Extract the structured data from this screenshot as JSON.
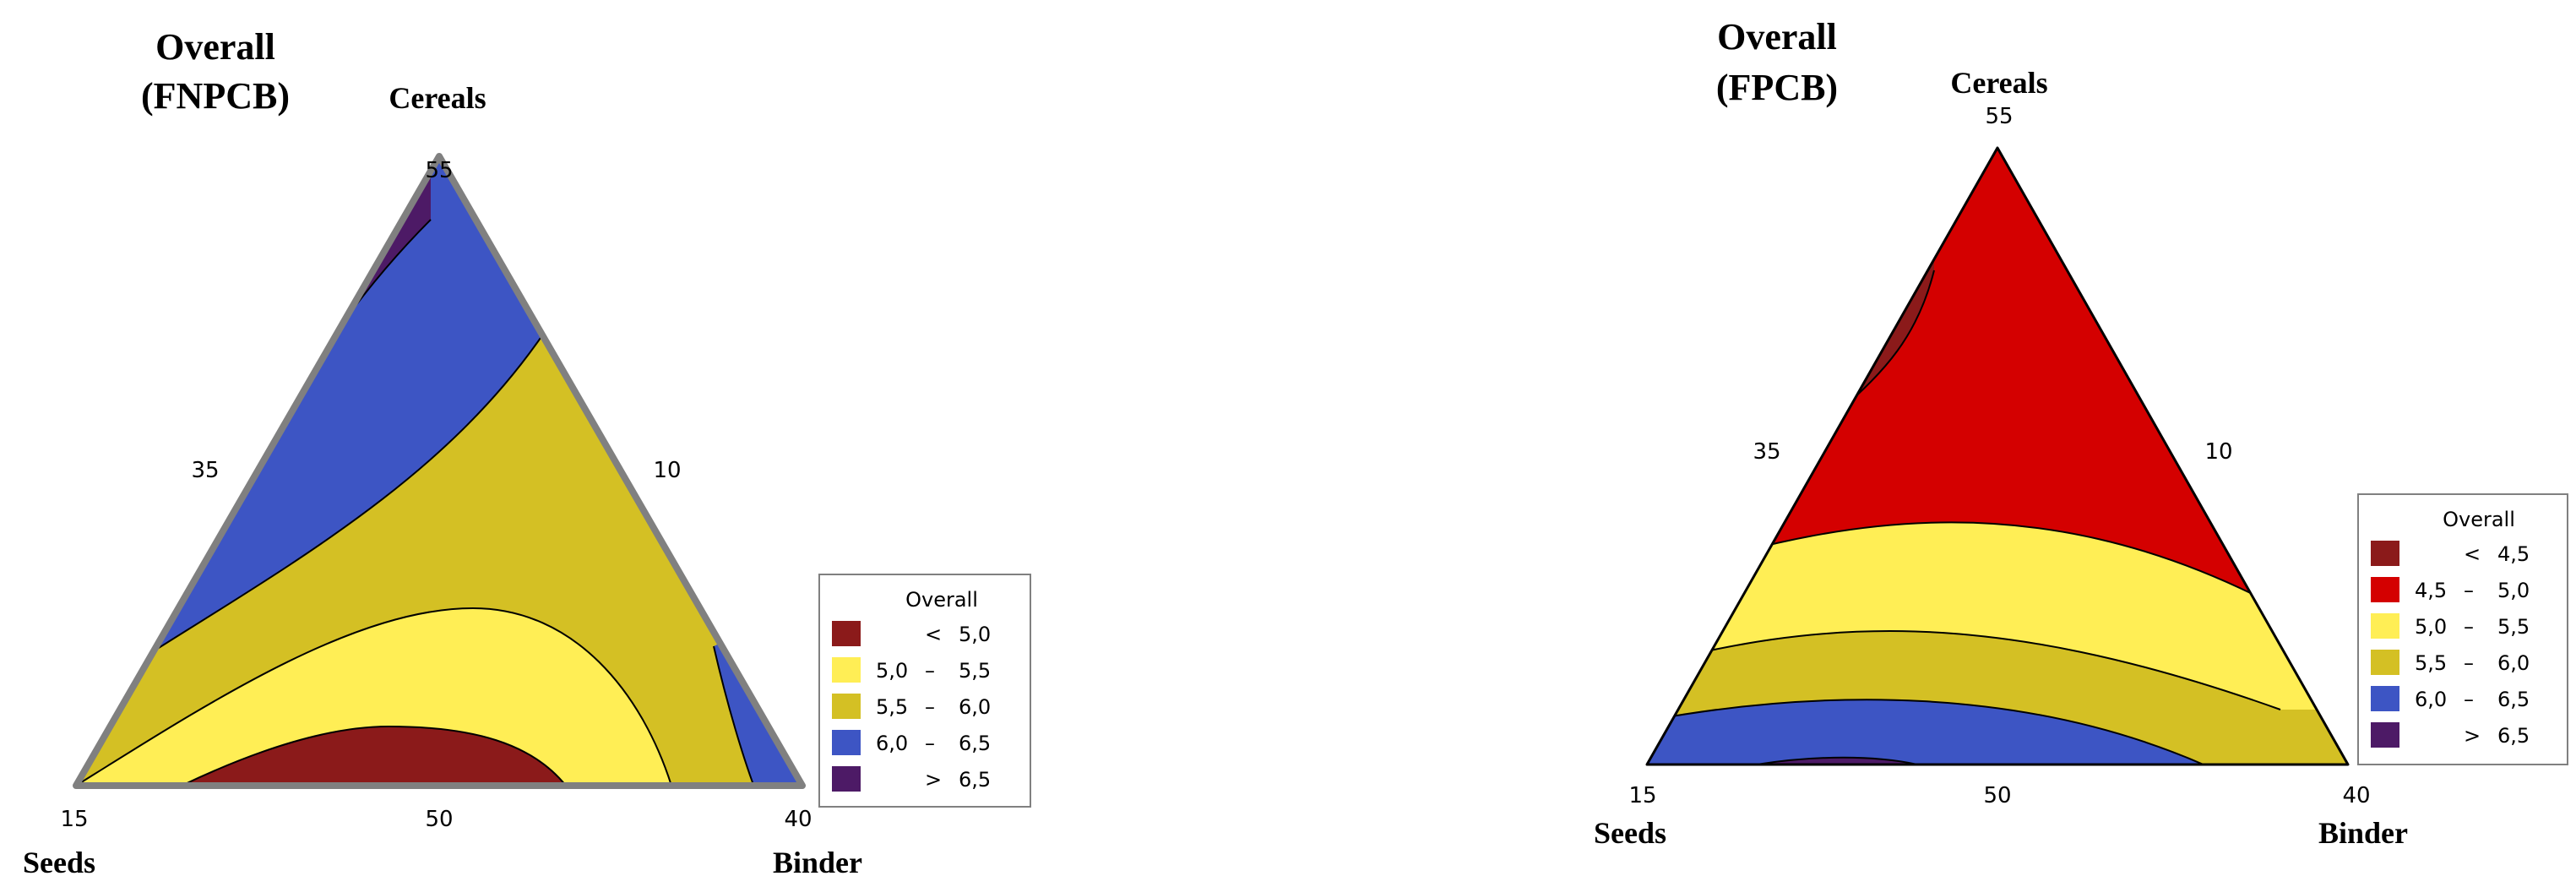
{
  "chart_data": [
    {
      "type": "ternary-contour",
      "title": [
        "Overall",
        "(FNPCB)"
      ],
      "vertices": {
        "top": "Cereals",
        "left": "Seeds",
        "right": "Binder"
      },
      "ticks": {
        "top": "55",
        "left": "15",
        "right": "40",
        "bottom_mid": "50",
        "left_mid": "35",
        "right_mid": "10"
      },
      "legend": {
        "title": "Overall",
        "levels": [
          {
            "label": "<",
            "range": "5,0",
            "color": "#8b1a1a"
          },
          {
            "label": "5,0",
            "range": "5,5",
            "color": "#ffee55"
          },
          {
            "label": "5,5",
            "range": "6,0",
            "color": "#d4c024"
          },
          {
            "label": "6,0",
            "range": "6,5",
            "color": "#3d55c4"
          },
          {
            "label": ">",
            "range": "6,5",
            "color": "#4d1a66"
          }
        ]
      },
      "border_color": "#808080"
    },
    {
      "type": "ternary-contour",
      "title": [
        "Overall",
        "(FPCB)"
      ],
      "vertices": {
        "top": "Cereals",
        "left": "Seeds",
        "right": "Binder"
      },
      "ticks": {
        "top": "55",
        "left": "15",
        "right": "40",
        "bottom_mid": "50",
        "left_mid": "35",
        "right_mid": "10"
      },
      "legend": {
        "title": "Overall",
        "levels": [
          {
            "label": "<",
            "range": "4,5",
            "color": "#8b1a1a"
          },
          {
            "label": "4,5",
            "range": "5,0",
            "color": "#d40000"
          },
          {
            "label": "5,0",
            "range": "5,5",
            "color": "#ffee55"
          },
          {
            "label": "5,5",
            "range": "6,0",
            "color": "#d4c024"
          },
          {
            "label": "6,0",
            "range": "6,5",
            "color": "#3d55c4"
          },
          {
            "label": ">",
            "range": "6,5",
            "color": "#4d1a66"
          }
        ]
      },
      "border_color": "#000000"
    }
  ]
}
